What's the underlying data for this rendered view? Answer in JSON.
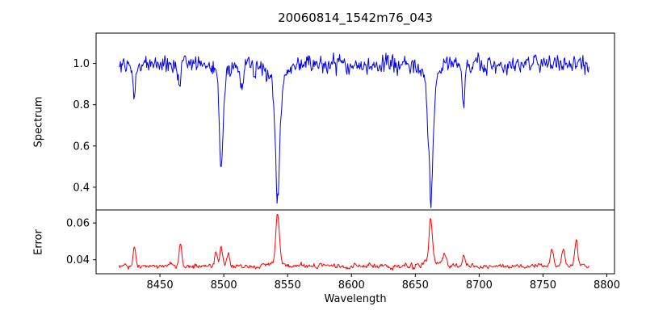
{
  "figure": {
    "background": "#ffffff",
    "text_color": "#000000",
    "spine_color": "#000000"
  },
  "chart_data": {
    "type": "line",
    "title": "20060814_1542m76_043",
    "xlabel": "Wavelength",
    "xlim": [
      8400,
      8806
    ],
    "xticks": [
      8450,
      8500,
      8550,
      8600,
      8650,
      8700,
      8750,
      8800
    ],
    "x_start": 8418,
    "x_end": 8786,
    "n_points": 700,
    "noise_seed": 20060814,
    "legend": "none",
    "grid": false,
    "panels": [
      {
        "name": "spectrum",
        "ylabel": "Spectrum",
        "line_color": "#0000ee",
        "ylim": [
          0.29,
          1.147
        ],
        "yticks": [
          0.4,
          0.6,
          0.8,
          1.0
        ],
        "continuum": 0.995,
        "noise_sigma": 0.021,
        "absorption_lines": [
          {
            "center": 8429.5,
            "depth": 0.15,
            "width": 1.1
          },
          {
            "center": 8465.0,
            "depth": 0.1,
            "width": 1.0
          },
          {
            "center": 8498.0,
            "depth": 0.45,
            "width": 1.4
          },
          {
            "center": 8498.0,
            "depth": 0.06,
            "width": 4.5
          },
          {
            "center": 8514.0,
            "depth": 0.12,
            "width": 1.2
          },
          {
            "center": 8542.1,
            "depth": 0.58,
            "width": 1.8
          },
          {
            "center": 8542.1,
            "depth": 0.08,
            "width": 6.0
          },
          {
            "center": 8662.1,
            "depth": 0.57,
            "width": 1.8
          },
          {
            "center": 8662.1,
            "depth": 0.08,
            "width": 6.0
          },
          {
            "center": 8688.0,
            "depth": 0.2,
            "width": 1.1
          }
        ]
      },
      {
        "name": "error",
        "ylabel": "Error",
        "line_color": "#ff0000",
        "ylim": [
          0.0324,
          0.0671
        ],
        "yticks": [
          0.04,
          0.06
        ],
        "ytick_labels": [
          "0.04",
          "0.06"
        ],
        "baseline": 0.0365,
        "noise_sigma": 0.0006,
        "peaks": [
          {
            "center": 8430.0,
            "height": 0.0115,
            "width": 1.0
          },
          {
            "center": 8466.0,
            "height": 0.0125,
            "width": 1.0
          },
          {
            "center": 8494.0,
            "height": 0.008,
            "width": 1.0
          },
          {
            "center": 8498.0,
            "height": 0.011,
            "width": 1.0
          },
          {
            "center": 8503.5,
            "height": 0.008,
            "width": 1.0
          },
          {
            "center": 8542.1,
            "height": 0.027,
            "width": 1.3
          },
          {
            "center": 8542.1,
            "height": 0.003,
            "width": 5.0
          },
          {
            "center": 8662.1,
            "height": 0.0225,
            "width": 1.3
          },
          {
            "center": 8662.1,
            "height": 0.003,
            "width": 5.0
          },
          {
            "center": 8673.0,
            "height": 0.006,
            "width": 1.5
          },
          {
            "center": 8688.0,
            "height": 0.006,
            "width": 1.0
          },
          {
            "center": 8757.0,
            "height": 0.009,
            "width": 1.2
          },
          {
            "center": 8766.0,
            "height": 0.01,
            "width": 1.2
          },
          {
            "center": 8776.0,
            "height": 0.015,
            "width": 1.0
          }
        ]
      }
    ]
  }
}
